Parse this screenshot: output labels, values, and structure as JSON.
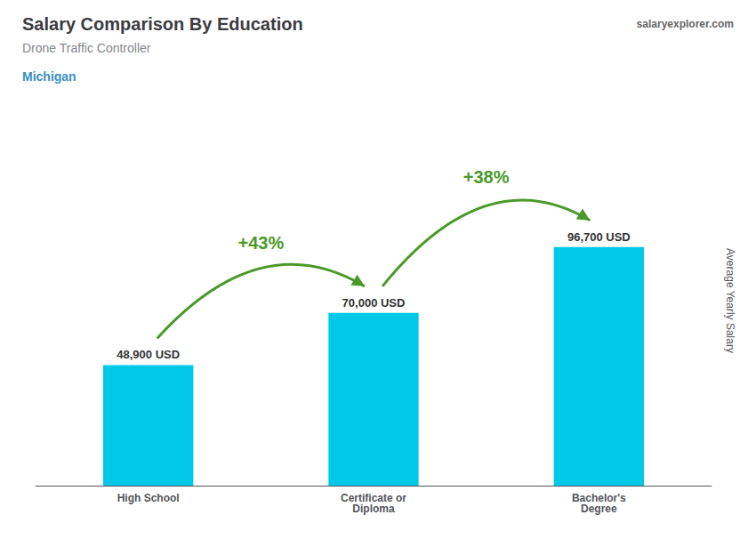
{
  "chart_data": {
    "type": "bar",
    "title": "Salary Comparison By Education",
    "subtitle": "Drone Traffic Controller",
    "ylabel": "Average Yearly Salary",
    "categories": [
      "High School",
      "Certificate or\nDiploma",
      "Bachelor's\nDegree"
    ],
    "values": [
      48900,
      70000,
      96700
    ],
    "value_labels": [
      "48,900 USD",
      "70,000 USD",
      "96,700 USD"
    ],
    "data_labels": true,
    "color": "#00c8e8",
    "ylim": [
      0,
      150000
    ],
    "yticks": [
      0,
      50000,
      100000,
      150000
    ],
    "tick_labels": "x",
    "grid": false,
    "annotations": [
      {
        "text": "Michigan"
      },
      {
        "text": "salaryexplorer.com"
      },
      {
        "text": "+43%",
        "from": "High School",
        "to": "Certificate or\nDiploma"
      },
      {
        "text": "+38%",
        "from": "Certificate or\nDiploma",
        "to": "Bachelor's\nDegree"
      }
    ]
  }
}
